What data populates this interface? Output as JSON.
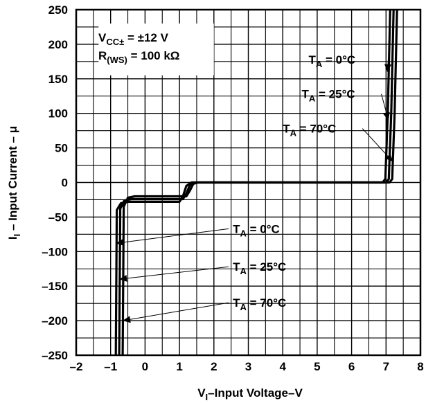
{
  "chart_data": {
    "type": "line",
    "xlabel": {
      "main": "V",
      "sub": "I",
      "rest": "–Input Voltage–V"
    },
    "ylabel": {
      "main": "I",
      "sub": "I",
      "rest": " – Input Current – μ"
    },
    "xlim": [
      -2,
      8
    ],
    "ylim": [
      -250,
      250
    ],
    "xticks": [
      "–2",
      "–1",
      "0",
      "1",
      "2",
      "3",
      "4",
      "5",
      "6",
      "7",
      "8"
    ],
    "yticks": [
      "250",
      "200",
      "150",
      "100",
      "50",
      "0",
      "–50",
      "–100",
      "–150",
      "–200",
      "–250"
    ],
    "xgrid_step": 0.5,
    "ygrid_step": 25,
    "conditions": {
      "line1_a": "V",
      "line1_sub": "CC±",
      "line1_b": " = ±12 V",
      "line2_a": "R",
      "line2_sub": "(WS)",
      "line2_b": " = 100 kΩ"
    },
    "series": [
      {
        "name": "T_A = 0°C",
        "points": [
          [
            -0.85,
            -250
          ],
          [
            -0.82,
            -40
          ],
          [
            -0.7,
            -30
          ],
          [
            -0.5,
            -28
          ],
          [
            1.0,
            -28
          ],
          [
            1.1,
            -20
          ],
          [
            1.2,
            -5
          ],
          [
            1.35,
            0
          ],
          [
            6.9,
            0
          ],
          [
            6.98,
            5
          ],
          [
            7.05,
            100
          ],
          [
            7.12,
            250
          ]
        ]
      },
      {
        "name": "T_A = 25°C",
        "points": [
          [
            -0.75,
            -250
          ],
          [
            -0.72,
            -38
          ],
          [
            -0.6,
            -26
          ],
          [
            -0.4,
            -24
          ],
          [
            1.1,
            -24
          ],
          [
            1.2,
            -16
          ],
          [
            1.3,
            -4
          ],
          [
            1.45,
            0
          ],
          [
            7.0,
            0
          ],
          [
            7.08,
            5
          ],
          [
            7.15,
            100
          ],
          [
            7.22,
            250
          ]
        ]
      },
      {
        "name": "T_A = 70°C",
        "points": [
          [
            -0.65,
            -250
          ],
          [
            -0.62,
            -35
          ],
          [
            -0.5,
            -22
          ],
          [
            -0.3,
            -20
          ],
          [
            1.2,
            -20
          ],
          [
            1.3,
            -12
          ],
          [
            1.4,
            -2
          ],
          [
            1.55,
            0
          ],
          [
            7.1,
            0
          ],
          [
            7.18,
            5
          ],
          [
            7.25,
            100
          ],
          [
            7.32,
            250
          ]
        ]
      }
    ],
    "annotations": [
      {
        "label": "0°C",
        "pre": "T",
        "sub": "A",
        "text_x": 2.55,
        "text_y": -73,
        "target_x": -0.85,
        "target_y": -88
      },
      {
        "label": "25°C",
        "pre": "T",
        "sub": "A",
        "text_x": 2.55,
        "text_y": -128,
        "target_x": -0.75,
        "target_y": -140
      },
      {
        "label": "70°C",
        "pre": "T",
        "sub": "A",
        "text_x": 2.55,
        "text_y": -180,
        "target_x": -0.65,
        "target_y": -200
      },
      {
        "label": "0°C",
        "pre": "T",
        "sub": "A",
        "text_x": 4.75,
        "text_y": 172,
        "target_x": 7.04,
        "target_y": 160
      },
      {
        "label": "25°C",
        "pre": "T",
        "sub": "A",
        "text_x": 4.55,
        "text_y": 122,
        "target_x": 7.07,
        "target_y": 90
      },
      {
        "label": "70°C",
        "pre": "T",
        "sub": "A",
        "text_x": 4.0,
        "text_y": 72,
        "target_x": 7.2,
        "target_y": 30
      }
    ],
    "grid": true,
    "legend": "none"
  }
}
